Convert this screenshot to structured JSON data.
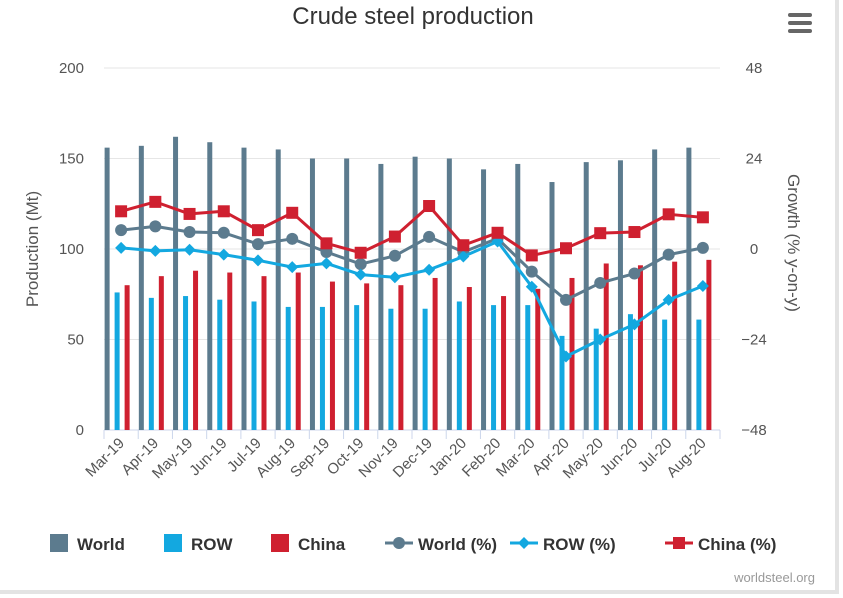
{
  "chart_data": {
    "type": "bar",
    "title": "Crude steel production",
    "ylabel": "Production (Mt)",
    "y2label": "Growth (% y-on-y)",
    "ylim": [
      0,
      200
    ],
    "y2lim": [
      -48,
      48
    ],
    "yticks": [
      "0",
      "50",
      "100",
      "150",
      "200"
    ],
    "y2ticks": [
      "−48",
      "−24",
      "0",
      "24",
      "48"
    ],
    "categories": [
      "Mar-19",
      "Apr-19",
      "May-19",
      "Jun-19",
      "Jul-19",
      "Aug-19",
      "Sep-19",
      "Oct-19",
      "Nov-19",
      "Dec-19",
      "Jan-20",
      "Feb-20",
      "Mar-20",
      "Apr-20",
      "May-20",
      "Jun-20",
      "Jul-20",
      "Aug-20"
    ],
    "series": [
      {
        "name": "World",
        "kind": "bar",
        "color": "#5c7b8e",
        "values": [
          156,
          157,
          162,
          159,
          156,
          155,
          150,
          150,
          147,
          151,
          150,
          144,
          147,
          137,
          148,
          149,
          155,
          156
        ]
      },
      {
        "name": "ROW",
        "kind": "bar",
        "color": "#13a8e0",
        "values": [
          76,
          73,
          74,
          72,
          71,
          68,
          68,
          69,
          67,
          67,
          71,
          69,
          69,
          52,
          56,
          64,
          61,
          61
        ]
      },
      {
        "name": "China",
        "kind": "bar",
        "color": "#cf2030",
        "values": [
          80,
          85,
          88,
          87,
          85,
          87,
          82,
          81,
          80,
          84,
          79,
          74,
          78,
          84,
          92,
          91,
          93,
          94
        ]
      },
      {
        "name": "World (%)",
        "kind": "line",
        "marker": "circle",
        "color": "#5c7b8e",
        "values": [
          5,
          6,
          4.5,
          4.3,
          1.3,
          2.7,
          -0.8,
          -4,
          -1.8,
          3.2,
          -0.8,
          2.8,
          -6,
          -13.5,
          -9,
          -6.5,
          -1.5,
          0.3
        ]
      },
      {
        "name": "ROW (%)",
        "kind": "line",
        "marker": "diamond",
        "color": "#13a8e0",
        "values": [
          0.3,
          -0.5,
          -0.2,
          -1.5,
          -3,
          -4.8,
          -3.8,
          -6.8,
          -7.5,
          -5.5,
          -2,
          2,
          -10,
          -28.5,
          -24,
          -20,
          -13.5,
          -9.8
        ]
      },
      {
        "name": "China (%)",
        "kind": "line",
        "marker": "square",
        "color": "#cf2030",
        "values": [
          10,
          12.5,
          9.3,
          10,
          5,
          9.6,
          1.5,
          -1,
          3.3,
          11.4,
          1,
          4.3,
          -1.7,
          0.2,
          4.2,
          4.5,
          9.2,
          8.4
        ]
      }
    ],
    "legend": {
      "position": "bottom"
    },
    "grid": true,
    "credit": "worldsteel.org"
  },
  "ui": {
    "menu_icon": "hamburger-menu-icon"
  }
}
